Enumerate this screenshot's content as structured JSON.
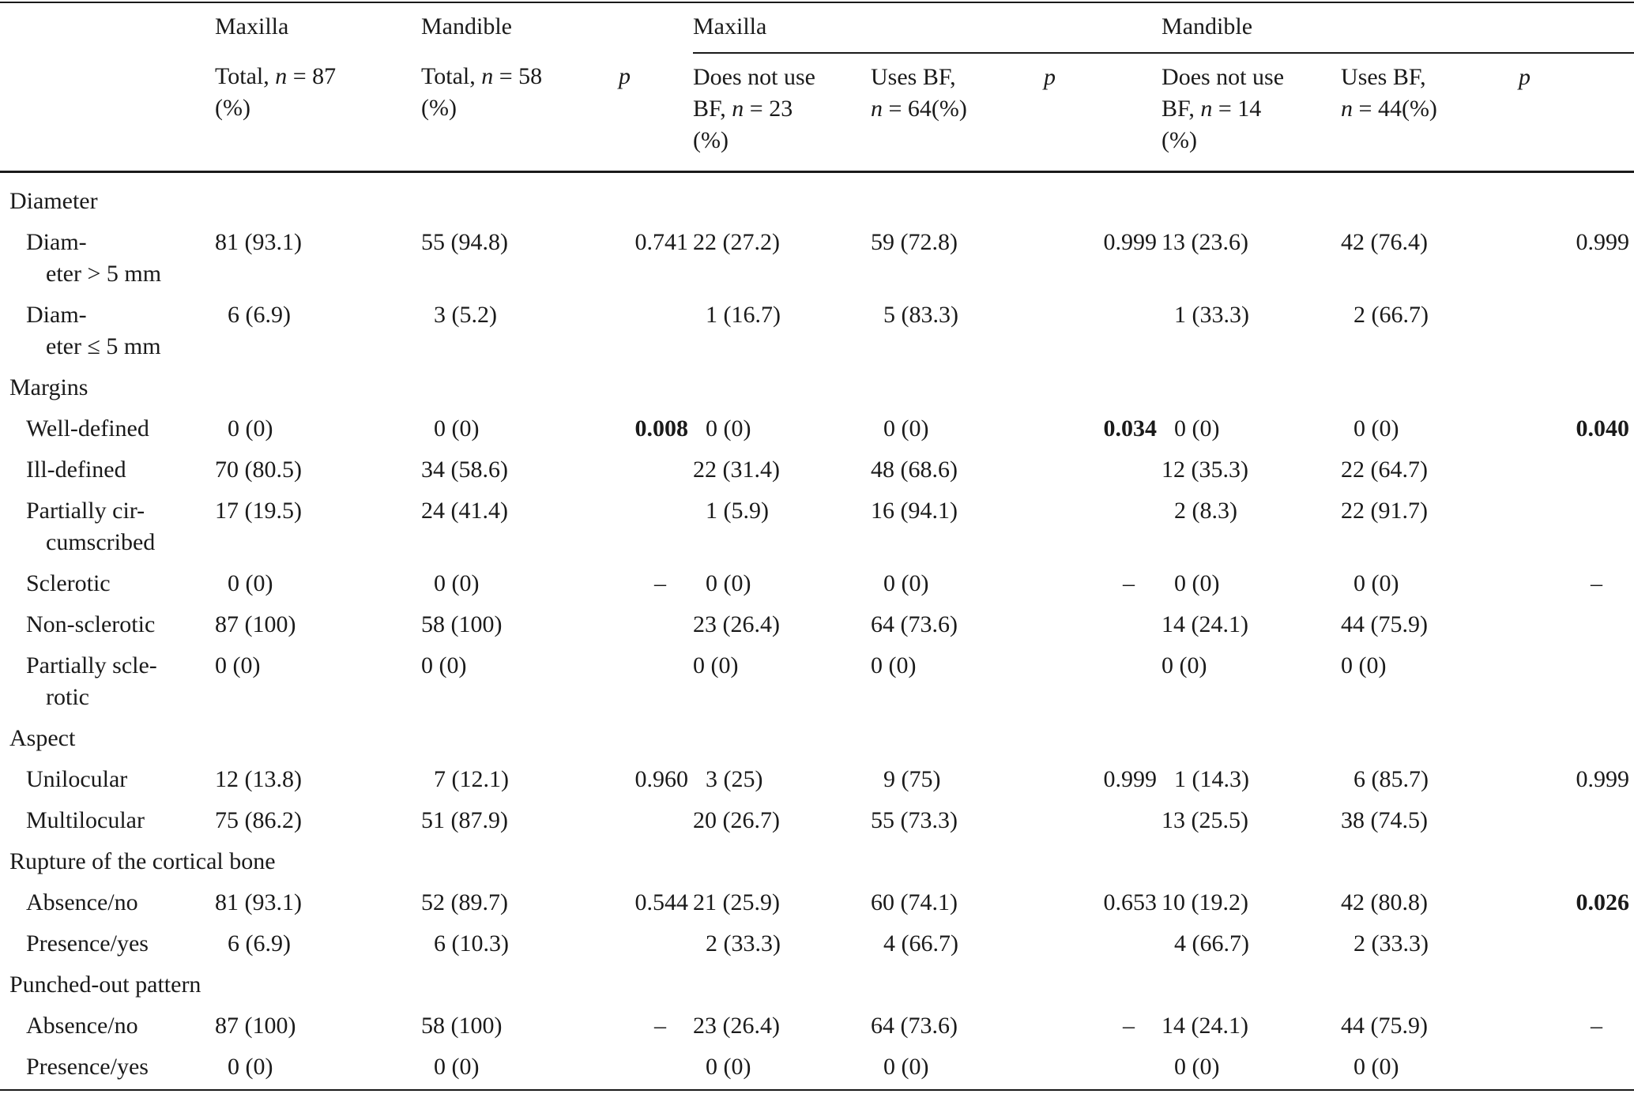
{
  "header": {
    "group_row": {
      "maxilla_label": "Maxilla",
      "mandible_label": "Mandible",
      "maxilla_group_label": "Maxilla",
      "mandible_group_label": "Mandible"
    },
    "columns": {
      "max_total_a": "Total, ",
      "max_total_n": "n",
      "max_total_b": " = 87",
      "max_total_c": "(%)",
      "man_total_a": "Total, ",
      "man_total_n": "n",
      "man_total_b": " = 58",
      "man_total_c": "(%)",
      "p": "p",
      "max_nouse_a": "Does not use",
      "max_nouse_b": "BF, ",
      "max_nouse_n": "n",
      "max_nouse_c": " = 23",
      "max_nouse_d": "(%)",
      "max_use_a": "Uses BF,",
      "max_use_n": "n",
      "max_use_b": " = 64(%)",
      "man_nouse_a": "Does not use",
      "man_nouse_b": "BF, ",
      "man_nouse_n": "n",
      "man_nouse_c": " = 14",
      "man_nouse_d": "(%)",
      "man_use_a": "Uses BF,",
      "man_use_n": "n",
      "man_use_b": " = 44(%)"
    }
  },
  "rows": [
    {
      "type": "section",
      "label": "Diameter"
    },
    {
      "type": "data",
      "label": "Diam-",
      "label2": "eter > 5 mm",
      "cells": [
        "81 (93.1)",
        "55 (94.8)",
        "0.741",
        "22 (27.2)",
        "59 (72.8)",
        "0.999",
        "13 (23.6)",
        "42 (76.4)",
        "0.999"
      ],
      "bold": []
    },
    {
      "type": "data",
      "label": "Diam-",
      "label2": "eter ≤ 5 mm",
      "cells": [
        "6 (6.9)",
        "3 (5.2)",
        "",
        "1 (16.7)",
        "5 (83.3)",
        "",
        "1 (33.3)",
        "2 (66.7)",
        ""
      ],
      "bold": [],
      "pad": true
    },
    {
      "type": "section",
      "label": "Margins"
    },
    {
      "type": "data",
      "label": "Well-defined",
      "cells": [
        "0 (0)",
        "0 (0)",
        "0.008",
        "0 (0)",
        "0 (0)",
        "0.034",
        "0 (0)",
        "0 (0)",
        "0.040"
      ],
      "bold": [
        2,
        5,
        8
      ]
    },
    {
      "type": "data",
      "label": "Ill-defined",
      "cells": [
        "70 (80.5)",
        "34 (58.6)",
        "",
        "22 (31.4)",
        "48 (68.6)",
        "",
        "12 (35.3)",
        "22 (64.7)",
        ""
      ],
      "bold": []
    },
    {
      "type": "data",
      "label": "Partially cir-",
      "label2": "cumscribed",
      "cells": [
        "17 (19.5)",
        "24 (41.4)",
        "",
        "1 (5.9)",
        "16 (94.1)",
        "",
        "2 (8.3)",
        "22 (91.7)",
        ""
      ],
      "bold": [],
      "pad": true
    },
    {
      "type": "data",
      "label": "Sclerotic",
      "cells": [
        "0 (0)",
        "0 (0)",
        "–",
        "0 (0)",
        "0 (0)",
        "–",
        "0 (0)",
        "0 (0)",
        "–"
      ],
      "bold": []
    },
    {
      "type": "data",
      "label": "Non-sclerotic",
      "cells": [
        "87 (100)",
        "58 (100)",
        "",
        "23 (26.4)",
        "64 (73.6)",
        "",
        "14 (24.1)",
        "44 (75.9)",
        ""
      ],
      "bold": []
    },
    {
      "type": "data",
      "label": "Partially scle-",
      "label2": "rotic",
      "cells": [
        "0 (0)",
        "0 (0)",
        "",
        "0 (0)",
        "0 (0)",
        "",
        "0 (0)",
        "0 (0)",
        ""
      ],
      "bold": [],
      "pad": false
    },
    {
      "type": "section",
      "label": "Aspect"
    },
    {
      "type": "data",
      "label": "Unilocular",
      "cells": [
        "12 (13.8)",
        "7 (12.1)",
        "0.960",
        "3 (25)",
        "9 (75)",
        "0.999",
        "1 (14.3)",
        "6 (85.7)",
        "0.999"
      ],
      "bold": [],
      "pad": true
    },
    {
      "type": "data",
      "label": "Multilocular",
      "cells": [
        "75 (86.2)",
        "51 (87.9)",
        "",
        "20 (26.7)",
        "55 (73.3)",
        "",
        "13 (25.5)",
        "38 (74.5)",
        ""
      ],
      "bold": []
    },
    {
      "type": "section",
      "label": "Rupture of the cortical bone"
    },
    {
      "type": "data",
      "label": "Absence/no",
      "cells": [
        "81 (93.1)",
        "52 (89.7)",
        "0.544",
        "21 (25.9)",
        "60 (74.1)",
        "0.653",
        "10 (19.2)",
        "42 (80.8)",
        "0.026"
      ],
      "bold": [
        8
      ]
    },
    {
      "type": "data",
      "label": "Presence/yes",
      "cells": [
        "6 (6.9)",
        "6 (10.3)",
        "",
        "2 (33.3)",
        "4 (66.7)",
        "",
        "4 (66.7)",
        "2 (33.3)",
        ""
      ],
      "bold": [],
      "pad": true
    },
    {
      "type": "section",
      "label": "Punched-out pattern"
    },
    {
      "type": "data",
      "label": "Absence/no",
      "cells": [
        "87 (100)",
        "58 (100)",
        "–",
        "23 (26.4)",
        "64 (73.6)",
        "–",
        "14 (24.1)",
        "44 (75.9)",
        "–"
      ],
      "bold": []
    },
    {
      "type": "data",
      "label": "Presence/yes",
      "cells": [
        "0 (0)",
        "0 (0)",
        "",
        "0 (0)",
        "0 (0)",
        "",
        "0 (0)",
        "0 (0)",
        ""
      ],
      "bold": [],
      "last": true
    }
  ]
}
